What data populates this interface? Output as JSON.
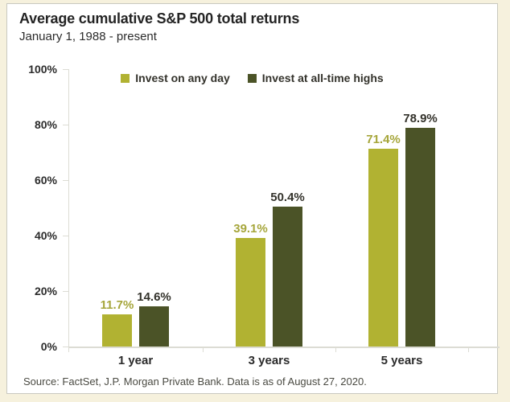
{
  "header": {
    "title": "Average cumulative S&P 500 total returns",
    "subtitle": "January 1, 1988 - present"
  },
  "footer": {
    "source": "Source: FactSet, J.P. Morgan Private Bank. Data is as of August 27, 2020."
  },
  "colors": {
    "page_background": "#f6f1dd",
    "card_background": "#ffffff",
    "card_border": "#c9c9c0",
    "axis_line": "#dcdcd4",
    "text": "#2b2b2b",
    "invest_any_day_bar": "#b1b232",
    "invest_any_day_label": "#a6a63b",
    "invest_ath_bar": "#4b5327",
    "invest_ath_label": "#33322b"
  },
  "chart_data": {
    "type": "bar",
    "title": "Average cumulative S&P 500 total returns",
    "subtitle": "January 1, 1988 - present",
    "categories": [
      "1 year",
      "3 years",
      "5 years"
    ],
    "series": [
      {
        "name": "Invest on any day",
        "values": [
          11.7,
          39.1,
          71.4
        ],
        "color": "#b1b232",
        "label_color": "#a6a63b"
      },
      {
        "name": "Invest at all-time highs",
        "values": [
          14.6,
          50.4,
          78.9
        ],
        "color": "#4b5327",
        "label_color": "#33322b"
      }
    ],
    "value_labels": [
      [
        "11.7%",
        "39.1%",
        "71.4%"
      ],
      [
        "14.6%",
        "50.4%",
        "78.9%"
      ]
    ],
    "xlabel": "",
    "ylabel": "",
    "y_ticks": [
      "100%",
      "80%",
      "60%",
      "40%",
      "20%",
      "0%"
    ],
    "ylim": [
      0,
      100
    ],
    "grid": false,
    "legend_position": "top"
  }
}
